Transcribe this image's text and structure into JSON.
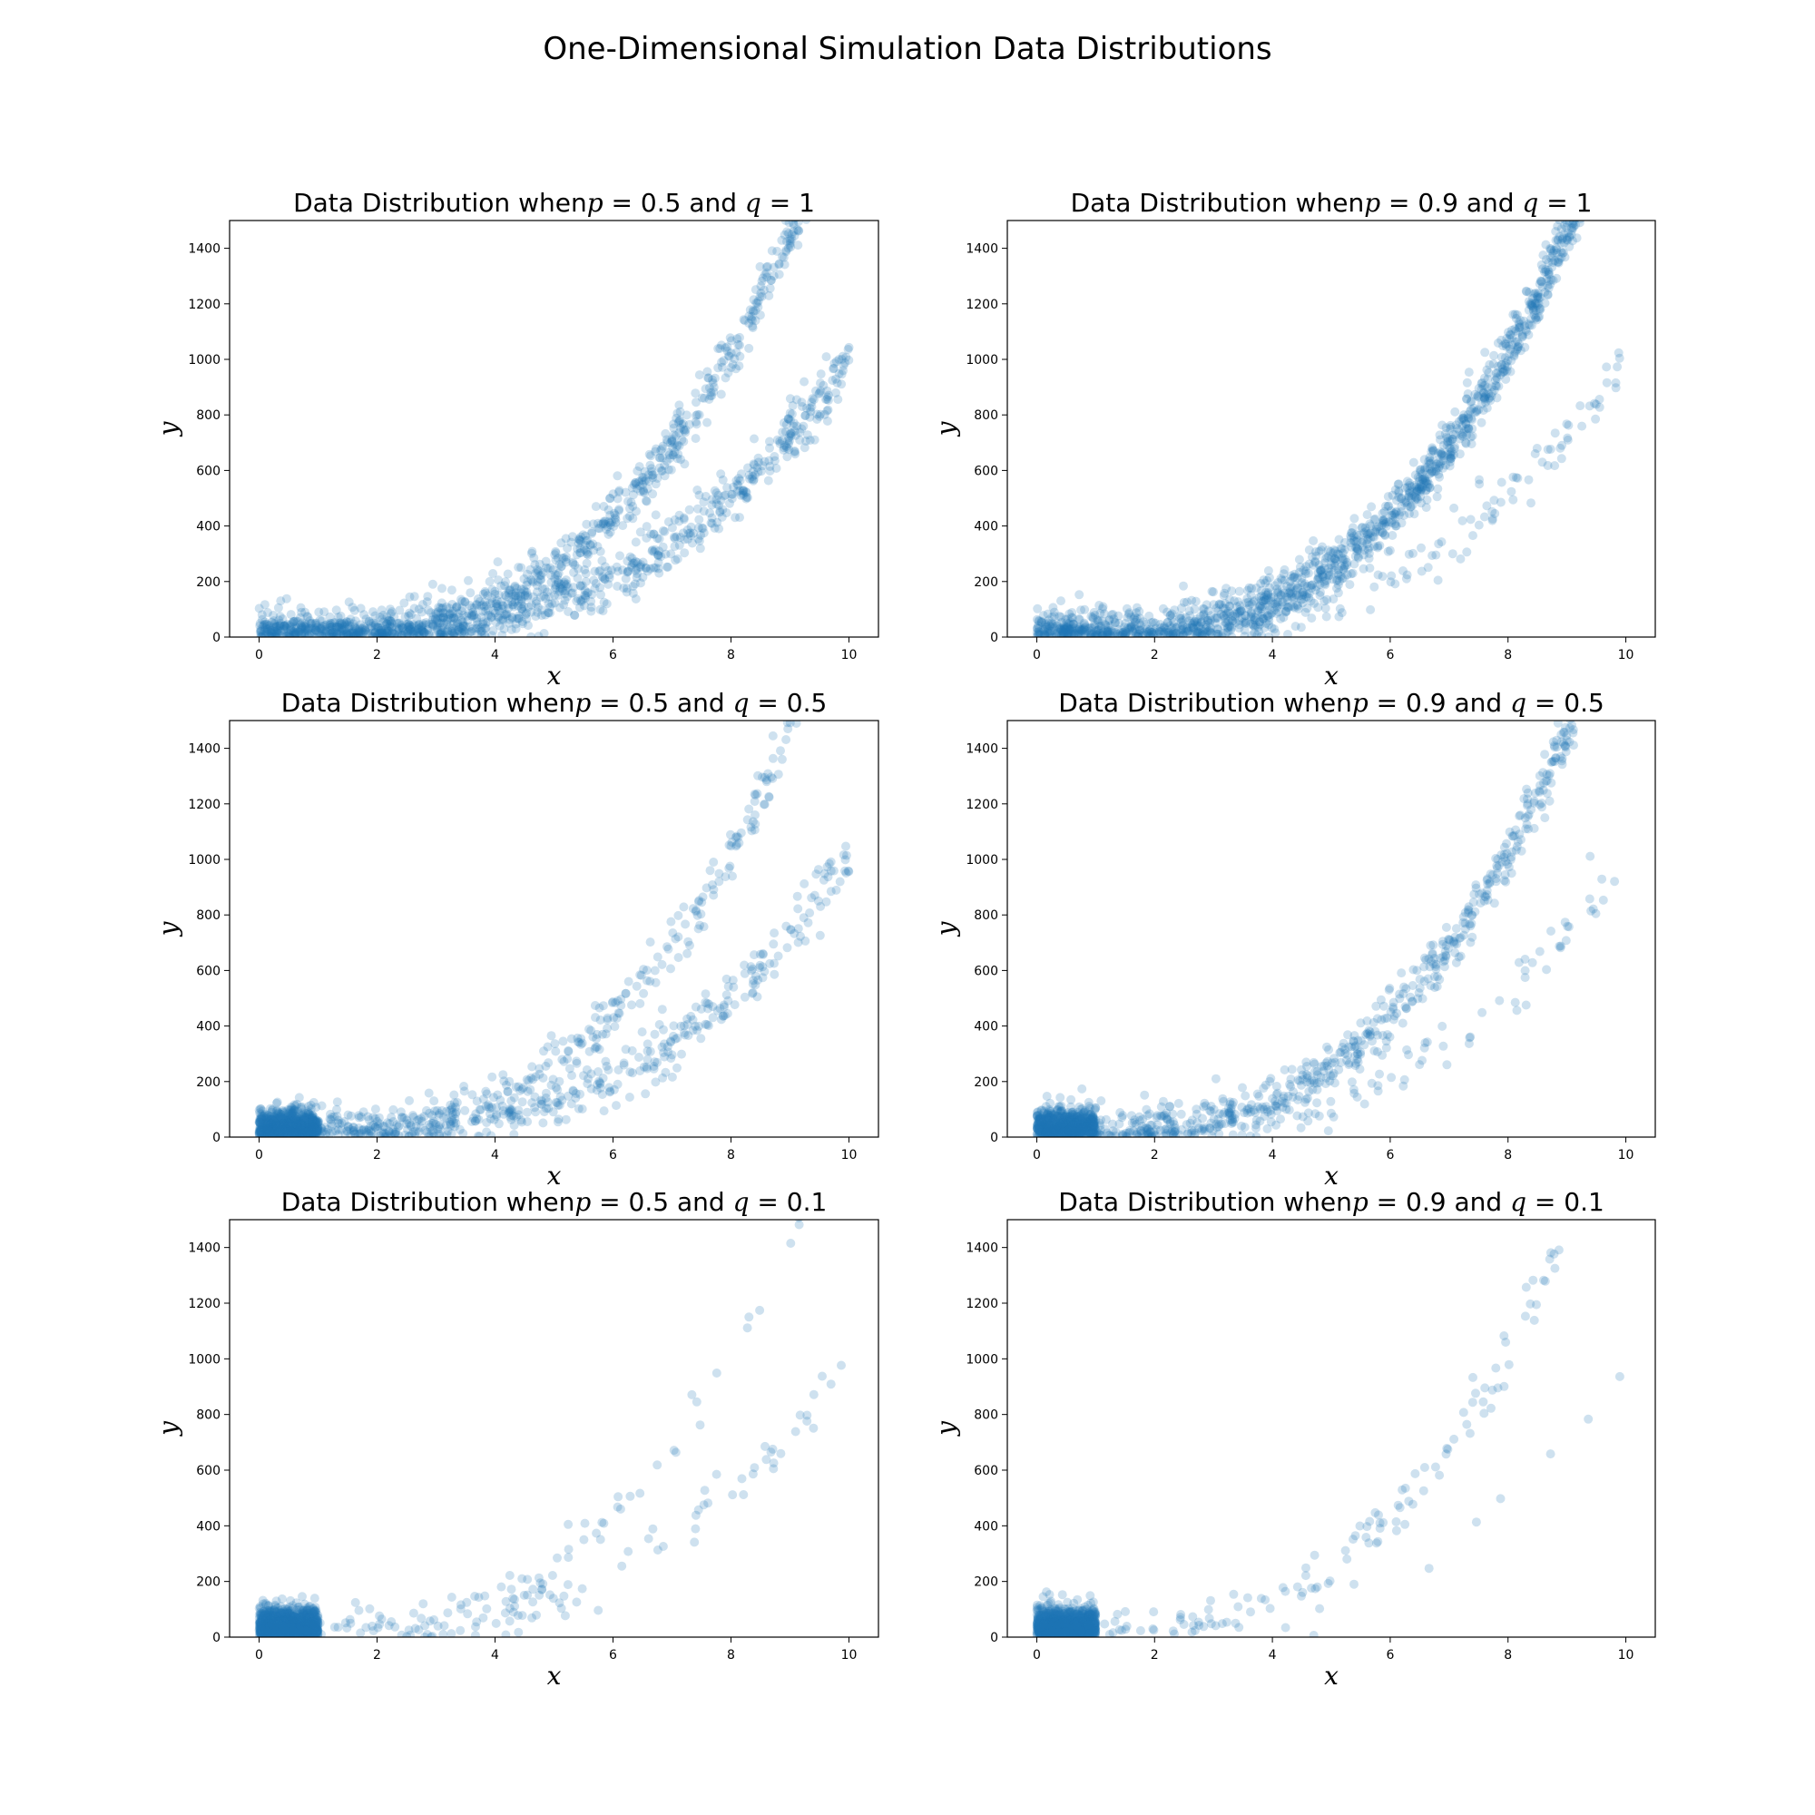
{
  "figure": {
    "title": "One-Dimensional Simulation Data Distributions",
    "point_color": "#1f77b4",
    "point_alpha": 0.22
  },
  "chart_data": [
    {
      "type": "scatter",
      "title": "Data Distribution when$p = 0.5$ and $q = 1$",
      "title_parts": {
        "prefix": "Data Distribution when",
        "p_symbol": "p",
        "p_value": "0.5",
        "q_symbol": "q",
        "q_value": "1"
      },
      "p": 0.5,
      "q": 1,
      "xlabel": "x",
      "ylabel": "y",
      "xlim": [
        -0.5,
        10.5
      ],
      "ylim": [
        0,
        1500
      ],
      "xticks": [
        0,
        2,
        4,
        6,
        8,
        10
      ],
      "xtick_labels": [
        "0",
        "2",
        "4",
        "6",
        "8",
        "10"
      ],
      "yticks": [
        0,
        200,
        400,
        600,
        800,
        1000,
        1200,
        1400
      ],
      "ytick_labels": [
        "0",
        "200",
        "400",
        "600",
        "800",
        "1000",
        "1200",
        "1400"
      ],
      "approx_points": 2000,
      "cluster_x_range": [
        0,
        1
      ],
      "cluster_share": 0.0,
      "upper_curve": "y ≈ 2·x³",
      "lower_curve": "y ≈ 1·x³",
      "upper_share": 0.5,
      "noise_sd": 50
    },
    {
      "type": "scatter",
      "title": "Data Distribution when$p = 0.9$ and $q = 1$",
      "title_parts": {
        "prefix": "Data Distribution when",
        "p_symbol": "p",
        "p_value": "0.9",
        "q_symbol": "q",
        "q_value": "1"
      },
      "p": 0.9,
      "q": 1,
      "xlabel": "x",
      "ylabel": "y",
      "xlim": [
        -0.5,
        10.5
      ],
      "ylim": [
        0,
        1500
      ],
      "xticks": [
        0,
        2,
        4,
        6,
        8,
        10
      ],
      "xtick_labels": [
        "0",
        "2",
        "4",
        "6",
        "8",
        "10"
      ],
      "yticks": [
        0,
        200,
        400,
        600,
        800,
        1000,
        1200,
        1400
      ],
      "ytick_labels": [
        "0",
        "200",
        "400",
        "600",
        "800",
        "1000",
        "1200",
        "1400"
      ],
      "approx_points": 2000,
      "cluster_x_range": [
        0,
        1
      ],
      "cluster_share": 0.0,
      "upper_curve": "y ≈ 2·x³",
      "lower_curve": "y ≈ 1·x³",
      "upper_share": 0.9,
      "noise_sd": 50
    },
    {
      "type": "scatter",
      "title": "Data Distribution when$p = 0.5$ and $q = 0.5$",
      "title_parts": {
        "prefix": "Data Distribution when",
        "p_symbol": "p",
        "p_value": "0.5",
        "q_symbol": "q",
        "q_value": "0.5"
      },
      "p": 0.5,
      "q": 0.5,
      "xlabel": "x",
      "ylabel": "y",
      "xlim": [
        -0.5,
        10.5
      ],
      "ylim": [
        0,
        1500
      ],
      "xticks": [
        0,
        2,
        4,
        6,
        8,
        10
      ],
      "xtick_labels": [
        "0",
        "2",
        "4",
        "6",
        "8",
        "10"
      ],
      "yticks": [
        0,
        200,
        400,
        600,
        800,
        1000,
        1200,
        1400
      ],
      "ytick_labels": [
        "0",
        "200",
        "400",
        "600",
        "800",
        "1000",
        "1200",
        "1400"
      ],
      "approx_points": 2000,
      "cluster_x_range": [
        0,
        1
      ],
      "cluster_share": 0.5,
      "upper_curve": "y ≈ 2·x³",
      "lower_curve": "y ≈ 1·x³",
      "upper_share": 0.5,
      "noise_sd": 50
    },
    {
      "type": "scatter",
      "title": "Data Distribution when$p = 0.9$ and $q = 0.5$",
      "title_parts": {
        "prefix": "Data Distribution when",
        "p_symbol": "p",
        "p_value": "0.9",
        "q_symbol": "q",
        "q_value": "0.5"
      },
      "p": 0.9,
      "q": 0.5,
      "xlabel": "x",
      "ylabel": "y",
      "xlim": [
        -0.5,
        10.5
      ],
      "ylim": [
        0,
        1500
      ],
      "xticks": [
        0,
        2,
        4,
        6,
        8,
        10
      ],
      "xtick_labels": [
        "0",
        "2",
        "4",
        "6",
        "8",
        "10"
      ],
      "yticks": [
        0,
        200,
        400,
        600,
        800,
        1000,
        1200,
        1400
      ],
      "ytick_labels": [
        "0",
        "200",
        "400",
        "600",
        "800",
        "1000",
        "1200",
        "1400"
      ],
      "approx_points": 2000,
      "cluster_x_range": [
        0,
        1
      ],
      "cluster_share": 0.5,
      "upper_curve": "y ≈ 2·x³",
      "lower_curve": "y ≈ 1·x³",
      "upper_share": 0.9,
      "noise_sd": 50
    },
    {
      "type": "scatter",
      "title": "Data Distribution when$p = 0.5$ and $q = 0.1$",
      "title_parts": {
        "prefix": "Data Distribution when",
        "p_symbol": "p",
        "p_value": "0.5",
        "q_symbol": "q",
        "q_value": "0.1"
      },
      "p": 0.5,
      "q": 0.1,
      "xlabel": "x",
      "ylabel": "y",
      "xlim": [
        -0.5,
        10.5
      ],
      "ylim": [
        0,
        1500
      ],
      "xticks": [
        0,
        2,
        4,
        6,
        8,
        10
      ],
      "xtick_labels": [
        "0",
        "2",
        "4",
        "6",
        "8",
        "10"
      ],
      "yticks": [
        0,
        200,
        400,
        600,
        800,
        1000,
        1200,
        1400
      ],
      "ytick_labels": [
        "0",
        "200",
        "400",
        "600",
        "800",
        "1000",
        "1200",
        "1400"
      ],
      "approx_points": 2000,
      "cluster_x_range": [
        0,
        1
      ],
      "cluster_share": 0.9,
      "upper_curve": "y ≈ 2·x³",
      "lower_curve": "y ≈ 1·x³",
      "upper_share": 0.5,
      "noise_sd": 50
    },
    {
      "type": "scatter",
      "title": "Data Distribution when$p = 0.9$ and $q = 0.1$",
      "title_parts": {
        "prefix": "Data Distribution when",
        "p_symbol": "p",
        "p_value": "0.9",
        "q_symbol": "q",
        "q_value": "0.1"
      },
      "p": 0.9,
      "q": 0.1,
      "xlabel": "x",
      "ylabel": "y",
      "xlim": [
        -0.5,
        10.5
      ],
      "ylim": [
        0,
        1500
      ],
      "xticks": [
        0,
        2,
        4,
        6,
        8,
        10
      ],
      "xtick_labels": [
        "0",
        "2",
        "4",
        "6",
        "8",
        "10"
      ],
      "yticks": [
        0,
        200,
        400,
        600,
        800,
        1000,
        1200,
        1400
      ],
      "ytick_labels": [
        "0",
        "200",
        "400",
        "600",
        "800",
        "1000",
        "1200",
        "1400"
      ],
      "approx_points": 2000,
      "cluster_x_range": [
        0,
        1
      ],
      "cluster_share": 0.9,
      "upper_curve": "y ≈ 2·x³",
      "lower_curve": "y ≈ 1·x³",
      "upper_share": 0.9,
      "noise_sd": 50
    }
  ]
}
